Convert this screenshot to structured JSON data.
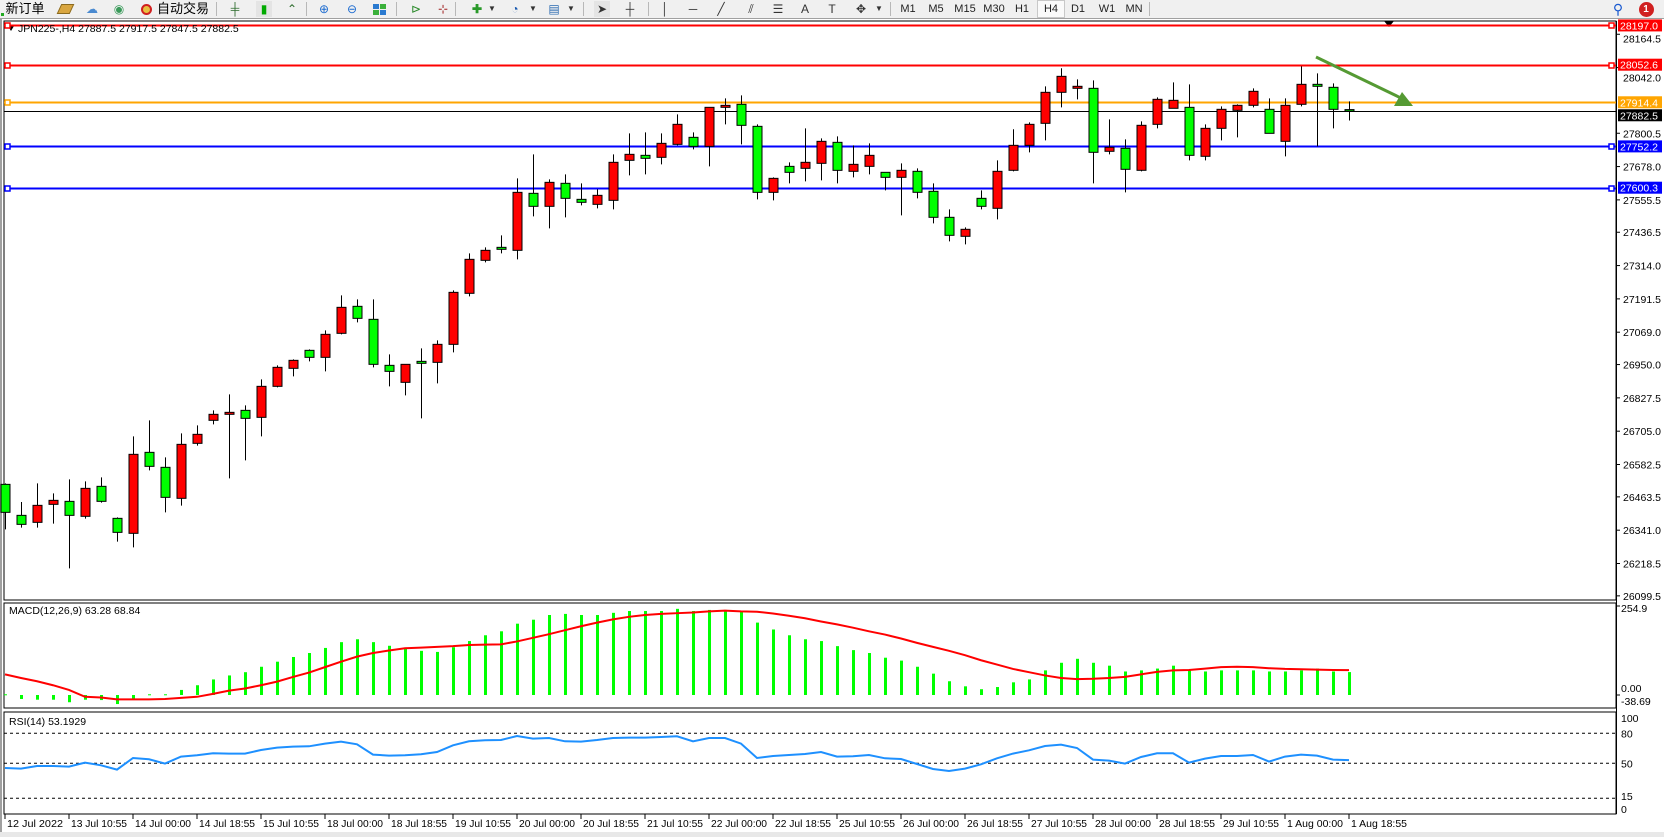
{
  "toolbar": {
    "new_order_label": "新订单",
    "auto_trading_label": "自动交易",
    "timeframes": [
      "M1",
      "M5",
      "M15",
      "M30",
      "H1",
      "H4",
      "D1",
      "W1",
      "MN"
    ],
    "active_timeframe": "H4",
    "notification_count": "1"
  },
  "chart": {
    "header": "JPN225-,H4  27887.5 27917.5 27847.5 27882.5",
    "symbol": "JPN225-",
    "timeframe": "H4",
    "colors": {
      "bull": "#ff0000",
      "bear": "#00ff00",
      "wick": "#000000",
      "background": "#ffffff"
    },
    "price_ticks": [
      "28164.5",
      "28042.0",
      "27800.5",
      "27678.0",
      "27555.5",
      "27436.5",
      "27314.0",
      "27191.5",
      "27069.0",
      "26950.0",
      "26827.5",
      "26705.0",
      "26582.5",
      "26463.5",
      "26341.0",
      "26218.5",
      "26099.5"
    ],
    "price_range": [
      26099.5,
      28197.0
    ],
    "horizontal_lines": [
      {
        "price": 28197.0,
        "label": "28197.0",
        "color": "#ff0000"
      },
      {
        "price": 28052.6,
        "label": "28052.6",
        "color": "#ff0000"
      },
      {
        "price": 27914.4,
        "label": "27914.4",
        "color": "#ffa500"
      },
      {
        "price": 27882.5,
        "label": "27882.5",
        "color": "#000000"
      },
      {
        "price": 27752.2,
        "label": "27752.2",
        "color": "#0000ff"
      },
      {
        "price": 27600.3,
        "label": "27600.3",
        "color": "#0000ff"
      }
    ],
    "annotation_arrow": {
      "color": "#559a33",
      "direction": "down-right",
      "from_price": 28100,
      "to_price": 27900
    },
    "time_labels": [
      {
        "index": 0,
        "label": "12 Jul 2022"
      },
      {
        "index": 4,
        "label": "13 Jul 10:55"
      },
      {
        "index": 8,
        "label": "14 Jul 00:00"
      },
      {
        "index": 12,
        "label": "14 Jul 18:55"
      },
      {
        "index": 16,
        "label": "15 Jul 10:55"
      },
      {
        "index": 20,
        "label": "18 Jul 00:00"
      },
      {
        "index": 24,
        "label": "18 Jul 18:55"
      },
      {
        "index": 28,
        "label": "19 Jul 10:55"
      },
      {
        "index": 32,
        "label": "20 Jul 00:00"
      },
      {
        "index": 36,
        "label": "20 Jul 18:55"
      },
      {
        "index": 40,
        "label": "21 Jul 10:55"
      },
      {
        "index": 44,
        "label": "22 Jul 00:00"
      },
      {
        "index": 48,
        "label": "22 Jul 18:55"
      },
      {
        "index": 52,
        "label": "25 Jul 10:55"
      },
      {
        "index": 56,
        "label": "26 Jul 00:00"
      },
      {
        "index": 60,
        "label": "26 Jul 18:55"
      },
      {
        "index": 64,
        "label": "27 Jul 10:55"
      },
      {
        "index": 68,
        "label": "28 Jul 00:00"
      },
      {
        "index": 72,
        "label": "28 Jul 18:55"
      },
      {
        "index": 76,
        "label": "29 Jul 10:55"
      },
      {
        "index": 80,
        "label": "1 Aug 00:00"
      },
      {
        "index": 84,
        "label": "1 Aug 18:55"
      }
    ]
  },
  "chart_data": {
    "type": "candlestick",
    "ohlc_fields": [
      "open",
      "high",
      "low",
      "close"
    ],
    "candles": [
      [
        26509.5,
        26513.2,
        26344.1,
        26406.6
      ],
      [
        26395.5,
        26444.6,
        26350.2,
        26362.4
      ],
      [
        26369.8,
        26513.2,
        26350.2,
        26432.3
      ],
      [
        26436.0,
        26476.4,
        26364.9,
        26450.7
      ],
      [
        26447.0,
        26527.9,
        26200.7,
        26395.5
      ],
      [
        26391.9,
        26520.6,
        26383.3,
        26494.8
      ],
      [
        26502.2,
        26535.3,
        26442.1,
        26447.0
      ],
      [
        26384.5,
        26388.2,
        26298.7,
        26333.0
      ],
      [
        26329.4,
        26686.0,
        26277.9,
        26619.9
      ],
      [
        26627.2,
        26744.9,
        26561.0,
        26575.7
      ],
      [
        26572.1,
        26608.8,
        26406.6,
        26461.7
      ],
      [
        26458.1,
        26697.1,
        26431.1,
        26656.6
      ],
      [
        26660.3,
        26726.5,
        26651.7,
        26693.4
      ],
      [
        26744.9,
        26781.6,
        26730.2,
        26767.0
      ],
      [
        26767.0,
        26840.5,
        26531.6,
        26774.3
      ],
      [
        26781.6,
        26800.0,
        26597.8,
        26752.2
      ],
      [
        26755.9,
        26895.6,
        26686.0,
        26869.9
      ],
      [
        26869.9,
        26947.1,
        26866.2,
        26939.8
      ],
      [
        26936.1,
        26969.2,
        26906.7,
        26965.5
      ],
      [
        27002.3,
        27005.9,
        26961.8,
        26976.5
      ],
      [
        26976.5,
        27075.8,
        26925.0,
        27061.1
      ],
      [
        27064.8,
        27204.5,
        27061.1,
        27160.4
      ],
      [
        27164.1,
        27189.8,
        27105.2,
        27119.9
      ],
      [
        27116.3,
        27189.8,
        26939.8,
        26950.8
      ],
      [
        26947.1,
        26987.6,
        26869.9,
        26925.0
      ],
      [
        26884.6,
        26950.8,
        26836.8,
        26950.8
      ],
      [
        26961.8,
        27009.6,
        26752.2,
        26954.5
      ],
      [
        26958.1,
        27039.0,
        26880.9,
        27024.3
      ],
      [
        27024.3,
        27222.9,
        26994.9,
        27215.5
      ],
      [
        27211.9,
        27358.9,
        27200.8,
        27336.9
      ],
      [
        27333.2,
        27381.0,
        27325.8,
        27370.0
      ],
      [
        27381.0,
        27425.1,
        27358.9,
        27373.7
      ],
      [
        27370.0,
        27634.7,
        27336.9,
        27583.2
      ],
      [
        27579.6,
        27723.0,
        27495.0,
        27531.8
      ],
      [
        27531.8,
        27631.0,
        27450.9,
        27620.0
      ],
      [
        27616.4,
        27649.4,
        27491.3,
        27561.2
      ],
      [
        27557.5,
        27616.4,
        27535.4,
        27546.5
      ],
      [
        27539.1,
        27594.3,
        27524.4,
        27572.2
      ],
      [
        27553.8,
        27723.0,
        27520.7,
        27693.6
      ],
      [
        27700.9,
        27800.2,
        27645.7,
        27723.0
      ],
      [
        27719.3,
        27803.9,
        27649.4,
        27708.3
      ],
      [
        27712.0,
        27800.2,
        27686.2,
        27763.4
      ],
      [
        27759.7,
        27870.1,
        27756.1,
        27833.3
      ],
      [
        27785.5,
        27803.9,
        27741.4,
        27752.4
      ],
      [
        27752.4,
        27895.8,
        27678.8,
        27895.8
      ],
      [
        27895.8,
        27928.9,
        27833.3,
        27903.1
      ],
      [
        27906.8,
        27939.9,
        27759.7,
        27829.6
      ],
      [
        27825.9,
        27833.3,
        27557.5,
        27583.2
      ],
      [
        27583.2,
        27638.4,
        27553.8,
        27634.7
      ],
      [
        27678.8,
        27693.6,
        27616.4,
        27656.8
      ],
      [
        27671.5,
        27818.6,
        27623.7,
        27693.6
      ],
      [
        27689.9,
        27781.8,
        27627.4,
        27770.8
      ],
      [
        27767.1,
        27789.2,
        27616.4,
        27664.1
      ],
      [
        27660.5,
        27756.1,
        27638.4,
        27686.2
      ],
      [
        27678.8,
        27763.4,
        27649.4,
        27719.3
      ],
      [
        27656.8,
        27656.8,
        27590.6,
        27638.4
      ],
      [
        27638.5,
        27689.9,
        27498.7,
        27664.2
      ],
      [
        27660.5,
        27671.5,
        27561.2,
        27583.3
      ],
      [
        27587.0,
        27616.4,
        27469.3,
        27491.4
      ],
      [
        27491.4,
        27520.8,
        27403.1,
        27425.2
      ],
      [
        27421.5,
        27454.6,
        27392.1,
        27447.3
      ],
      [
        27561.2,
        27590.6,
        27520.8,
        27531.8
      ],
      [
        27524.5,
        27701.0,
        27484.0,
        27660.5
      ],
      [
        27664.2,
        27815.0,
        27660.5,
        27756.1
      ],
      [
        27756.1,
        27840.7,
        27730.4,
        27833.3
      ],
      [
        27837.0,
        27973.1,
        27774.5,
        27951.0
      ],
      [
        27951.0,
        28039.3,
        27895.8,
        28009.8
      ],
      [
        27965.7,
        27998.8,
        27925.3,
        27973.1
      ],
      [
        27965.7,
        27995.1,
        27616.4,
        27730.4
      ],
      [
        27734.1,
        27851.7,
        27723.0,
        27748.8
      ],
      [
        27745.1,
        27778.2,
        27583.3,
        27667.9
      ],
      [
        27664.2,
        27844.4,
        27660.5,
        27829.7
      ],
      [
        27833.3,
        27932.6,
        27818.6,
        27925.3
      ],
      [
        27892.2,
        27987.8,
        27892.2,
        27921.6
      ],
      [
        27895.8,
        27980.4,
        27701.0,
        27719.3
      ],
      [
        27715.7,
        27833.3,
        27701.0,
        27818.6
      ],
      [
        27818.6,
        27899.5,
        27774.5,
        27888.5
      ],
      [
        27884.8,
        27906.9,
        27785.5,
        27903.2
      ],
      [
        27903.2,
        27965.7,
        27895.8,
        27954.7
      ],
      [
        27888.5,
        27928.9,
        27800.2,
        27800.2
      ],
      [
        27770.8,
        27928.9,
        27715.7,
        27903.2
      ],
      [
        27906.9,
        28046.6,
        27899.5,
        27980.4
      ],
      [
        27980.4,
        28020.9,
        27752.4,
        27973.1
      ],
      [
        27969.4,
        27984.1,
        27818.6,
        27888.5
      ],
      [
        27887.5,
        27917.5,
        27847.5,
        27882.5
      ]
    ],
    "macd": {
      "label": "MACD(12,26,9) 63.28 68.84",
      "axis_labels": [
        "254.9",
        "0.00",
        "-38.69"
      ],
      "range": [
        -38.69,
        254.9
      ],
      "histogram_color": "#00ff00",
      "signal_color": "#ff0000",
      "histogram": [
        2,
        -11,
        -13,
        -13,
        -20,
        -13,
        -14,
        -25,
        -13,
        2,
        2,
        14,
        27,
        43,
        54,
        63,
        78,
        92,
        105,
        116,
        130,
        146,
        154,
        146,
        136,
        128,
        122,
        119,
        132,
        149,
        165,
        176,
        197,
        208,
        221,
        224,
        221,
        221,
        227,
        232,
        232,
        232,
        238,
        232,
        235,
        235,
        230,
        200,
        181,
        165,
        154,
        149,
        135,
        124,
        116,
        103,
        95,
        78,
        59,
        38,
        24,
        16,
        22,
        35,
        43,
        68,
        89,
        100,
        89,
        81,
        65,
        68,
        73,
        81,
        68,
        65,
        68,
        68,
        68,
        65,
        65,
        68,
        73,
        65,
        63.28
      ],
      "signal": [
        57,
        47,
        38,
        27,
        14,
        -5,
        -7,
        -12,
        -12,
        -12,
        -11,
        -8,
        -5,
        3,
        12,
        18,
        27,
        37,
        50,
        62,
        77,
        92,
        106,
        116,
        123,
        129,
        131,
        133,
        135,
        138,
        139,
        140,
        148,
        158,
        168,
        179,
        190,
        200,
        209,
        216,
        221,
        224,
        226,
        228,
        231,
        233,
        231,
        230,
        225,
        219,
        212,
        203,
        195,
        186,
        176,
        167,
        156,
        144,
        133,
        122,
        110,
        96,
        84,
        72,
        63,
        54,
        47,
        44,
        45,
        47,
        50,
        57,
        64,
        68,
        69,
        73,
        77,
        78,
        77,
        74,
        72,
        71,
        70,
        69,
        68.84
      ]
    },
    "rsi": {
      "label": "RSI(14) 53.1929",
      "axis_labels": [
        "100",
        "80",
        "50",
        "15",
        "0"
      ],
      "levels": [
        80,
        50,
        15
      ],
      "range": [
        0,
        100
      ],
      "color": "#1e90ff",
      "values": [
        45.3,
        44.7,
        47.3,
        47.3,
        46.7,
        50.7,
        48,
        43.7,
        55.3,
        54,
        49.7,
        56.7,
        58,
        60,
        59.7,
        59.7,
        63.3,
        65.7,
        66.7,
        67,
        69.7,
        71.7,
        69,
        58.7,
        57.7,
        58,
        59,
        61.3,
        68,
        72,
        73,
        73.3,
        77.3,
        74.7,
        75.3,
        72,
        71.7,
        73.3,
        75.3,
        75.7,
        75.7,
        76.3,
        77,
        72,
        75.3,
        75.3,
        69.7,
        55.3,
        57.3,
        58.3,
        59.3,
        61.3,
        56.7,
        57,
        58.3,
        55,
        54.3,
        49.3,
        44.3,
        42.3,
        44.7,
        49,
        55,
        59.7,
        63,
        67.3,
        68.7,
        65.3,
        53.7,
        52.7,
        49.7,
        56.3,
        60,
        60,
        50.7,
        54.7,
        57.3,
        57.3,
        58.3,
        51.7,
        56.7,
        58.7,
        57.7,
        53.7,
        53.1929
      ]
    }
  }
}
